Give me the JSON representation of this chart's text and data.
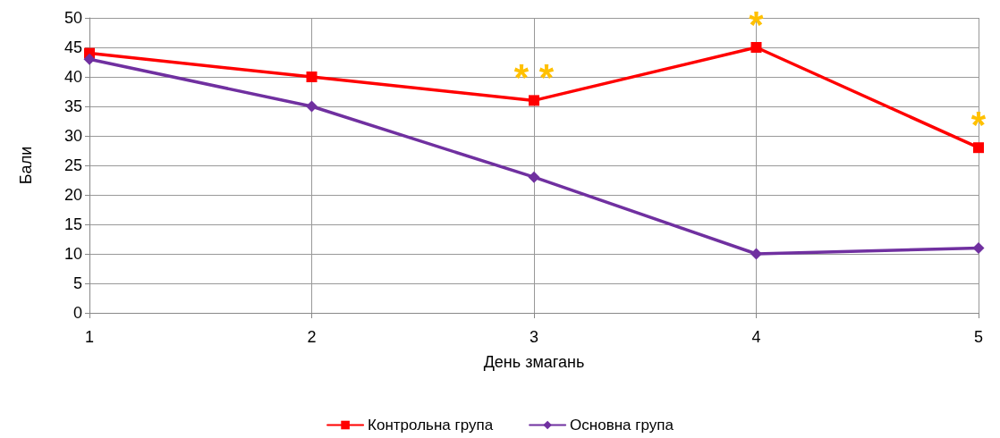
{
  "chart_data": {
    "type": "line",
    "xlabel": "День змагань",
    "ylabel": "Бали",
    "categories": [
      "1",
      "2",
      "3",
      "4",
      "5"
    ],
    "series": [
      {
        "name": "Контрольна група",
        "color": "#ff0000",
        "marker": "square",
        "values": [
          44,
          40,
          36,
          45,
          28
        ]
      },
      {
        "name": "Основна група",
        "color": "#7030a0",
        "marker": "diamond",
        "values": [
          43,
          35,
          23,
          10,
          11
        ]
      }
    ],
    "ylim": [
      0,
      50
    ],
    "yticks": [
      0,
      5,
      10,
      15,
      20,
      25,
      30,
      35,
      40,
      45,
      50
    ],
    "grid": true,
    "legend": "bottom",
    "annotations": [
      {
        "text": "* *",
        "x": "3",
        "y": 36
      },
      {
        "text": "*",
        "x": "4",
        "y": 45
      },
      {
        "text": "*",
        "x": "5",
        "y": 28
      }
    ]
  }
}
